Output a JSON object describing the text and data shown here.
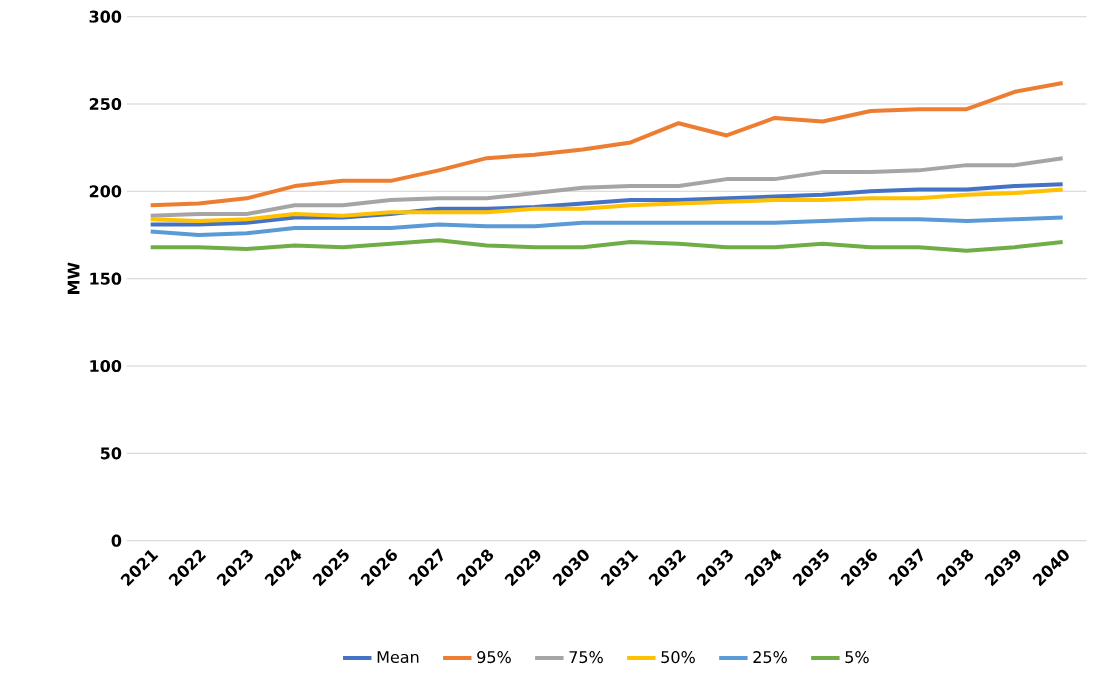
{
  "chart_data": {
    "type": "line",
    "ylabel": "MW",
    "categories": [
      "2021",
      "2022",
      "2023",
      "2024",
      "2025",
      "2026",
      "2027",
      "2028",
      "2029",
      "2030",
      "2031",
      "2032",
      "2033",
      "2034",
      "2035",
      "2036",
      "2037",
      "2038",
      "2039",
      "2040"
    ],
    "ylim": [
      0,
      300
    ],
    "yticks": [
      0,
      50,
      100,
      150,
      200,
      250,
      300
    ],
    "grid": "y",
    "legend": "bottom",
    "marker": "none",
    "line_style": "solid",
    "series": [
      {
        "name": "Mean",
        "color": "#4472c4",
        "values": [
          181,
          181,
          182,
          185,
          185,
          187,
          190,
          190,
          191,
          193,
          195,
          195,
          196,
          197,
          198,
          200,
          201,
          201,
          203,
          204
        ]
      },
      {
        "name": "95%",
        "color": "#ed7d31",
        "values": [
          192,
          193,
          196,
          203,
          206,
          206,
          212,
          219,
          221,
          224,
          228,
          239,
          232,
          242,
          240,
          246,
          247,
          247,
          257,
          262
        ]
      },
      {
        "name": "75%",
        "color": "#a5a5a5",
        "values": [
          186,
          187,
          187,
          192,
          192,
          195,
          196,
          196,
          199,
          202,
          203,
          203,
          207,
          207,
          211,
          211,
          212,
          215,
          215,
          219
        ]
      },
      {
        "name": "50%",
        "color": "#ffc000",
        "values": [
          184,
          183,
          184,
          187,
          186,
          188,
          188,
          188,
          190,
          190,
          192,
          193,
          194,
          195,
          195,
          196,
          196,
          198,
          199,
          201
        ]
      },
      {
        "name": "25%",
        "color": "#5b9bd5",
        "values": [
          177,
          175,
          176,
          179,
          179,
          179,
          181,
          180,
          180,
          182,
          182,
          182,
          182,
          182,
          183,
          184,
          184,
          183,
          184,
          185
        ]
      },
      {
        "name": "5%",
        "color": "#70ad47",
        "values": [
          168,
          168,
          167,
          169,
          168,
          170,
          172,
          169,
          168,
          168,
          171,
          170,
          168,
          168,
          170,
          168,
          168,
          166,
          168,
          171
        ]
      }
    ]
  }
}
